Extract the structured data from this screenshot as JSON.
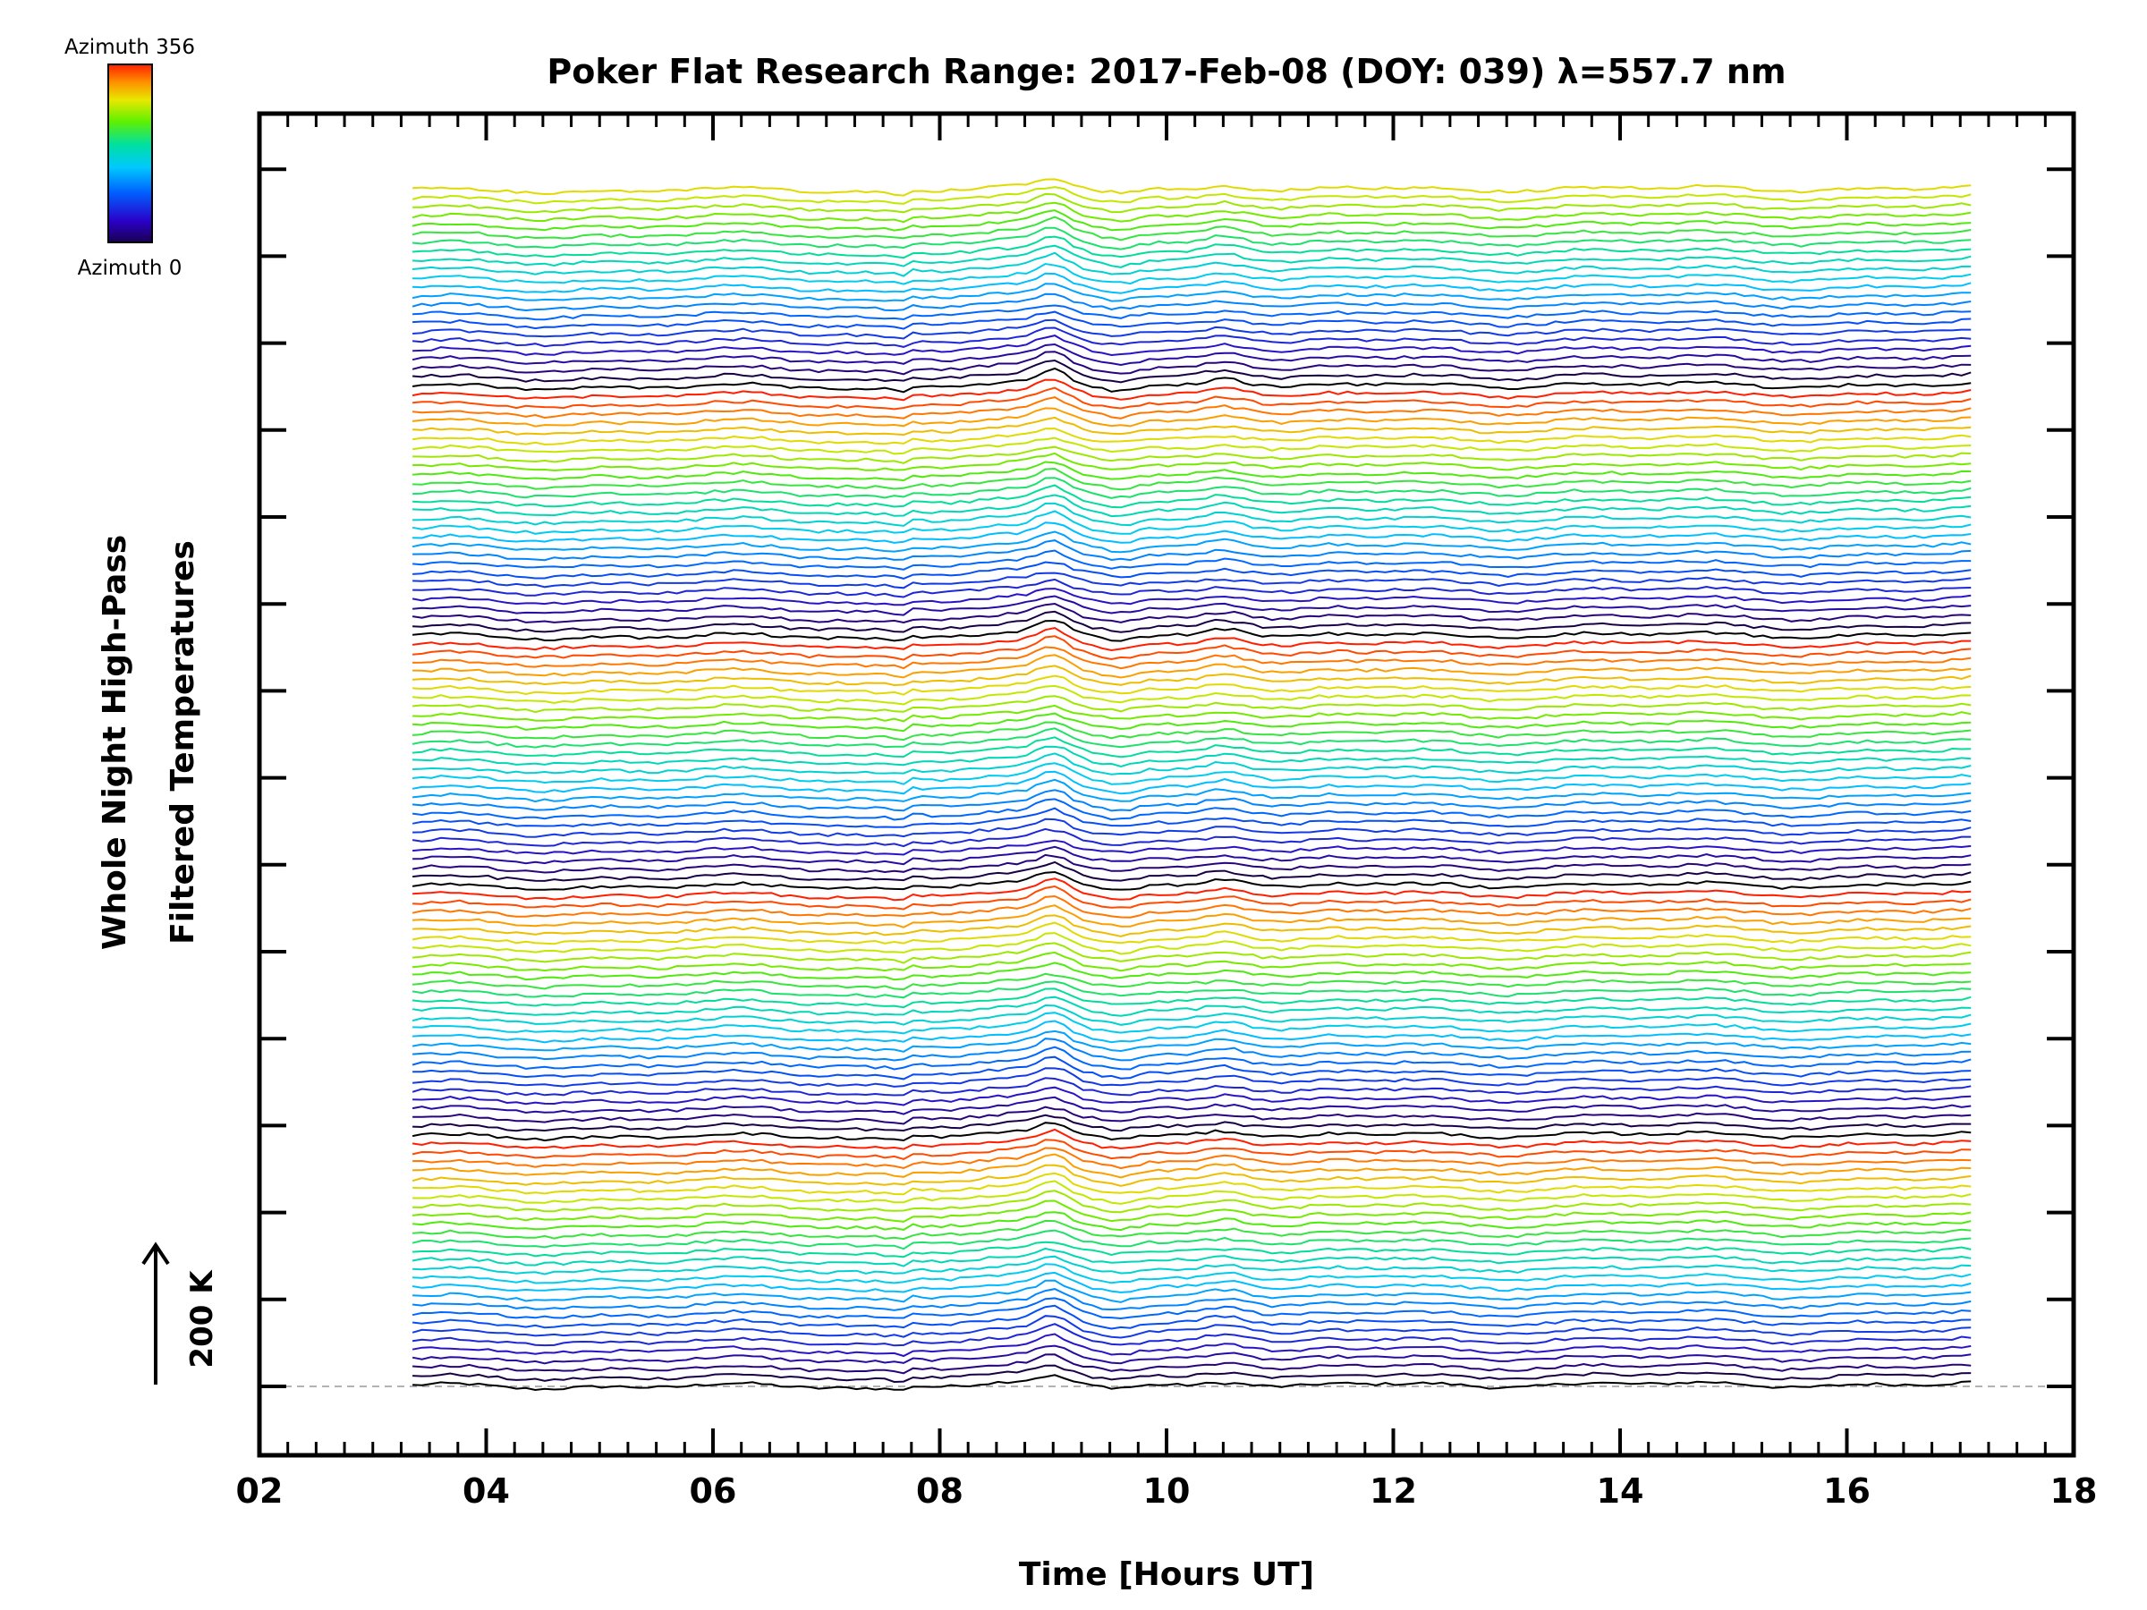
{
  "chart_data": {
    "type": "line",
    "title": "Poker Flat Research Range: 2017-Feb-08 (DOY: 039) λ=557.7 nm",
    "xlabel": "Time [Hours UT]",
    "ylabel_line1": "Whole Night High-Pass",
    "ylabel_line2": "Filtered Temperatures",
    "xlim": [
      2,
      18
    ],
    "x_ticks": [
      "02",
      "04",
      "06",
      "08",
      "10",
      "12",
      "14",
      "16",
      "18"
    ],
    "x_range_data": [
      3.35,
      17.15
    ],
    "scale_bar_label": "200 K",
    "colorbar": {
      "label_max": "Azimuth 356",
      "label_min": "Azimuth 0",
      "min": 0,
      "max": 356,
      "colormap": "rainbow"
    },
    "series_count": 135,
    "series_spacing_kelvin": 15,
    "stacked_offset": true,
    "baseline_dashed": true,
    "features": [
      {
        "time_ut": 7.7,
        "description_shape": "step"
      },
      {
        "time_ut": 9.0,
        "description_shape": "peak"
      },
      {
        "time_ut": 10.5,
        "description_shape": "peak"
      }
    ],
    "colors": {
      "background": "#ffffff",
      "axes": "#000000",
      "baseline": "#999999"
    }
  }
}
